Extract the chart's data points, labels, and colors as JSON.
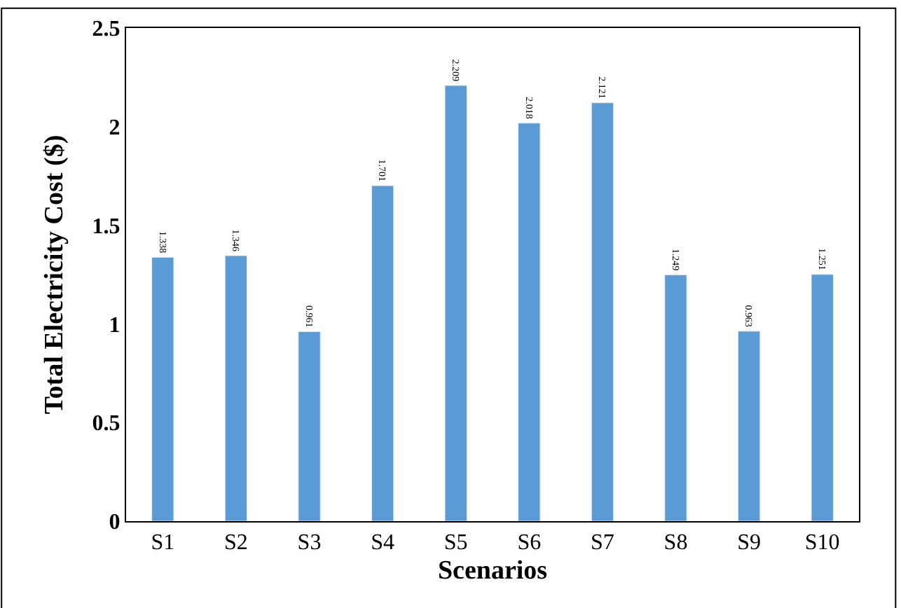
{
  "chart_data": {
    "type": "bar",
    "xlabel": "Scenarios",
    "ylabel": "Total Electricity Cost ($)",
    "categories": [
      "S1",
      "S2",
      "S3",
      "S4",
      "S5",
      "S6",
      "S7",
      "S8",
      "S9",
      "S10"
    ],
    "values": [
      1.338,
      1.346,
      0.961,
      1.701,
      2.209,
      2.018,
      2.121,
      1.249,
      0.963,
      1.251
    ],
    "color": "#5b9bd5",
    "data_labels": true,
    "ylim": [
      0,
      2.5
    ],
    "yticks": [
      0,
      0.5,
      1,
      1.5,
      2,
      2.5
    ],
    "grid": false,
    "legend": false
  }
}
